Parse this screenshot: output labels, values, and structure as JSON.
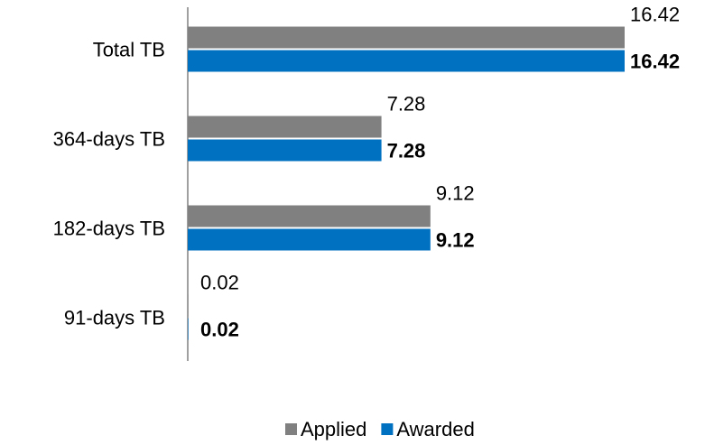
{
  "chart_data": {
    "type": "hbar",
    "categories": [
      "Total TB",
      "364-days TB",
      "182-days TB",
      "91-days TB"
    ],
    "series": [
      {
        "name": "Applied",
        "color": "#808080",
        "values": [
          16.42,
          7.28,
          9.12,
          0.02
        ]
      },
      {
        "name": "Awarded",
        "color": "#0070c0",
        "values": [
          16.42,
          7.28,
          9.12,
          0.02
        ]
      }
    ],
    "xlim": [
      0,
      16.42
    ],
    "legend": "bottom"
  }
}
